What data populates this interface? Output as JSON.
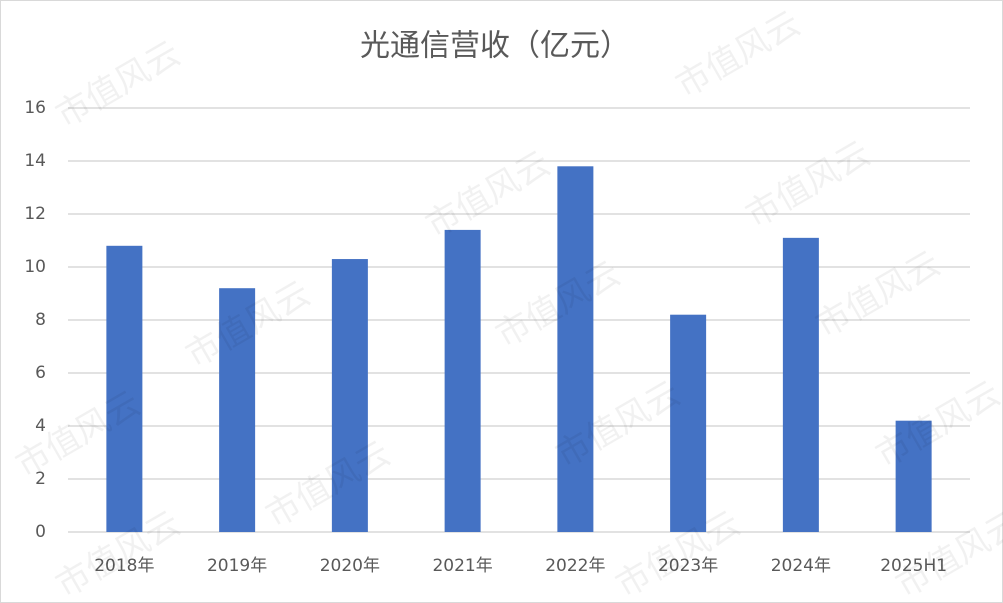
{
  "chart_data": {
    "type": "bar",
    "title": "光通信营收（亿元）",
    "watermark": "市值风云",
    "categories": [
      "2018年",
      "2019年",
      "2020年",
      "2021年",
      "2022年",
      "2023年",
      "2024年",
      "2025H1"
    ],
    "values": [
      10.8,
      9.2,
      10.3,
      11.4,
      13.8,
      8.2,
      11.1,
      4.2
    ],
    "color": "#4472c4",
    "ylim": [
      0,
      16
    ],
    "yticks": [
      0,
      2,
      4,
      6,
      8,
      10,
      12,
      14,
      16
    ],
    "grid": true
  }
}
